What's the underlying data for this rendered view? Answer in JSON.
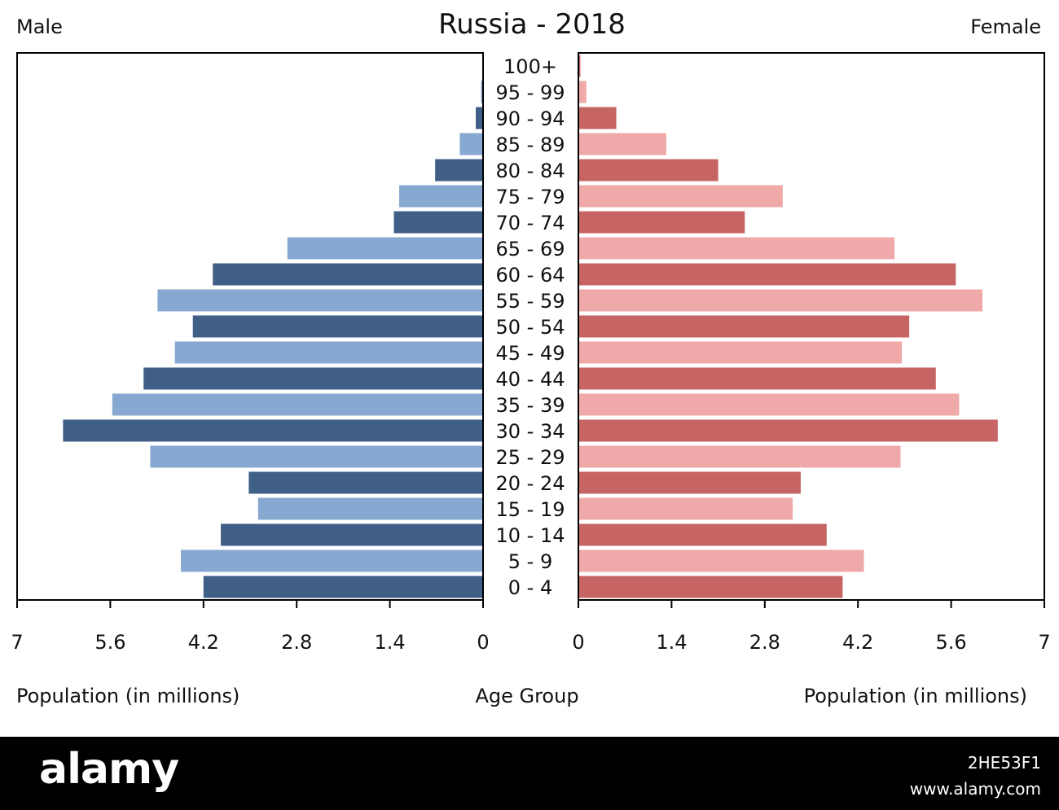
{
  "chart_data": {
    "type": "bar",
    "orientation": "horizontal",
    "layout": "population-pyramid",
    "title": "Russia - 2018",
    "left_label": "Male",
    "right_label": "Female",
    "xlabel_left": "Population (in millions)",
    "xlabel_right": "Population (in millions)",
    "center_label": "Age Group",
    "xlim": [
      0,
      7
    ],
    "ticks": [
      0,
      1.4,
      2.8,
      4.2,
      5.6,
      7
    ],
    "tick_labels_left": [
      "7",
      "5.6",
      "4.2",
      "2.8",
      "1.4",
      "0"
    ],
    "tick_labels_right": [
      "0",
      "1.4",
      "2.8",
      "4.2",
      "5.6",
      "7"
    ],
    "grid": false,
    "categories": [
      "100+",
      "95 - 99",
      "90 - 94",
      "85 - 89",
      "80 - 84",
      "75 - 79",
      "70 - 74",
      "65 - 69",
      "60 - 64",
      "55 - 59",
      "50 - 54",
      "45 - 49",
      "40 - 44",
      "35 - 39",
      "30 - 34",
      "25 - 29",
      "20 - 24",
      "15 - 19",
      "10 - 14",
      "5 - 9",
      "0 - 4"
    ],
    "series": [
      {
        "name": "Male",
        "colors": [
          "#3f5f87",
          "#87a8d0"
        ],
        "values": [
          0.01,
          0.03,
          0.11,
          0.35,
          0.72,
          1.26,
          1.34,
          2.94,
          4.06,
          4.89,
          4.36,
          4.63,
          5.1,
          5.57,
          6.31,
          5.0,
          3.52,
          3.38,
          3.94,
          4.54,
          4.2
        ]
      },
      {
        "name": "Female",
        "colors": [
          "#c76464",
          "#f0a9a9"
        ],
        "values": [
          0.03,
          0.12,
          0.57,
          1.32,
          2.1,
          3.07,
          2.5,
          4.75,
          5.67,
          6.07,
          4.97,
          4.86,
          5.37,
          5.72,
          6.3,
          4.84,
          3.34,
          3.22,
          3.73,
          4.29,
          3.97
        ]
      }
    ]
  },
  "watermark": {
    "logo": "alamy",
    "image_id": "2HE53F1",
    "url": "www.alamy.com"
  }
}
